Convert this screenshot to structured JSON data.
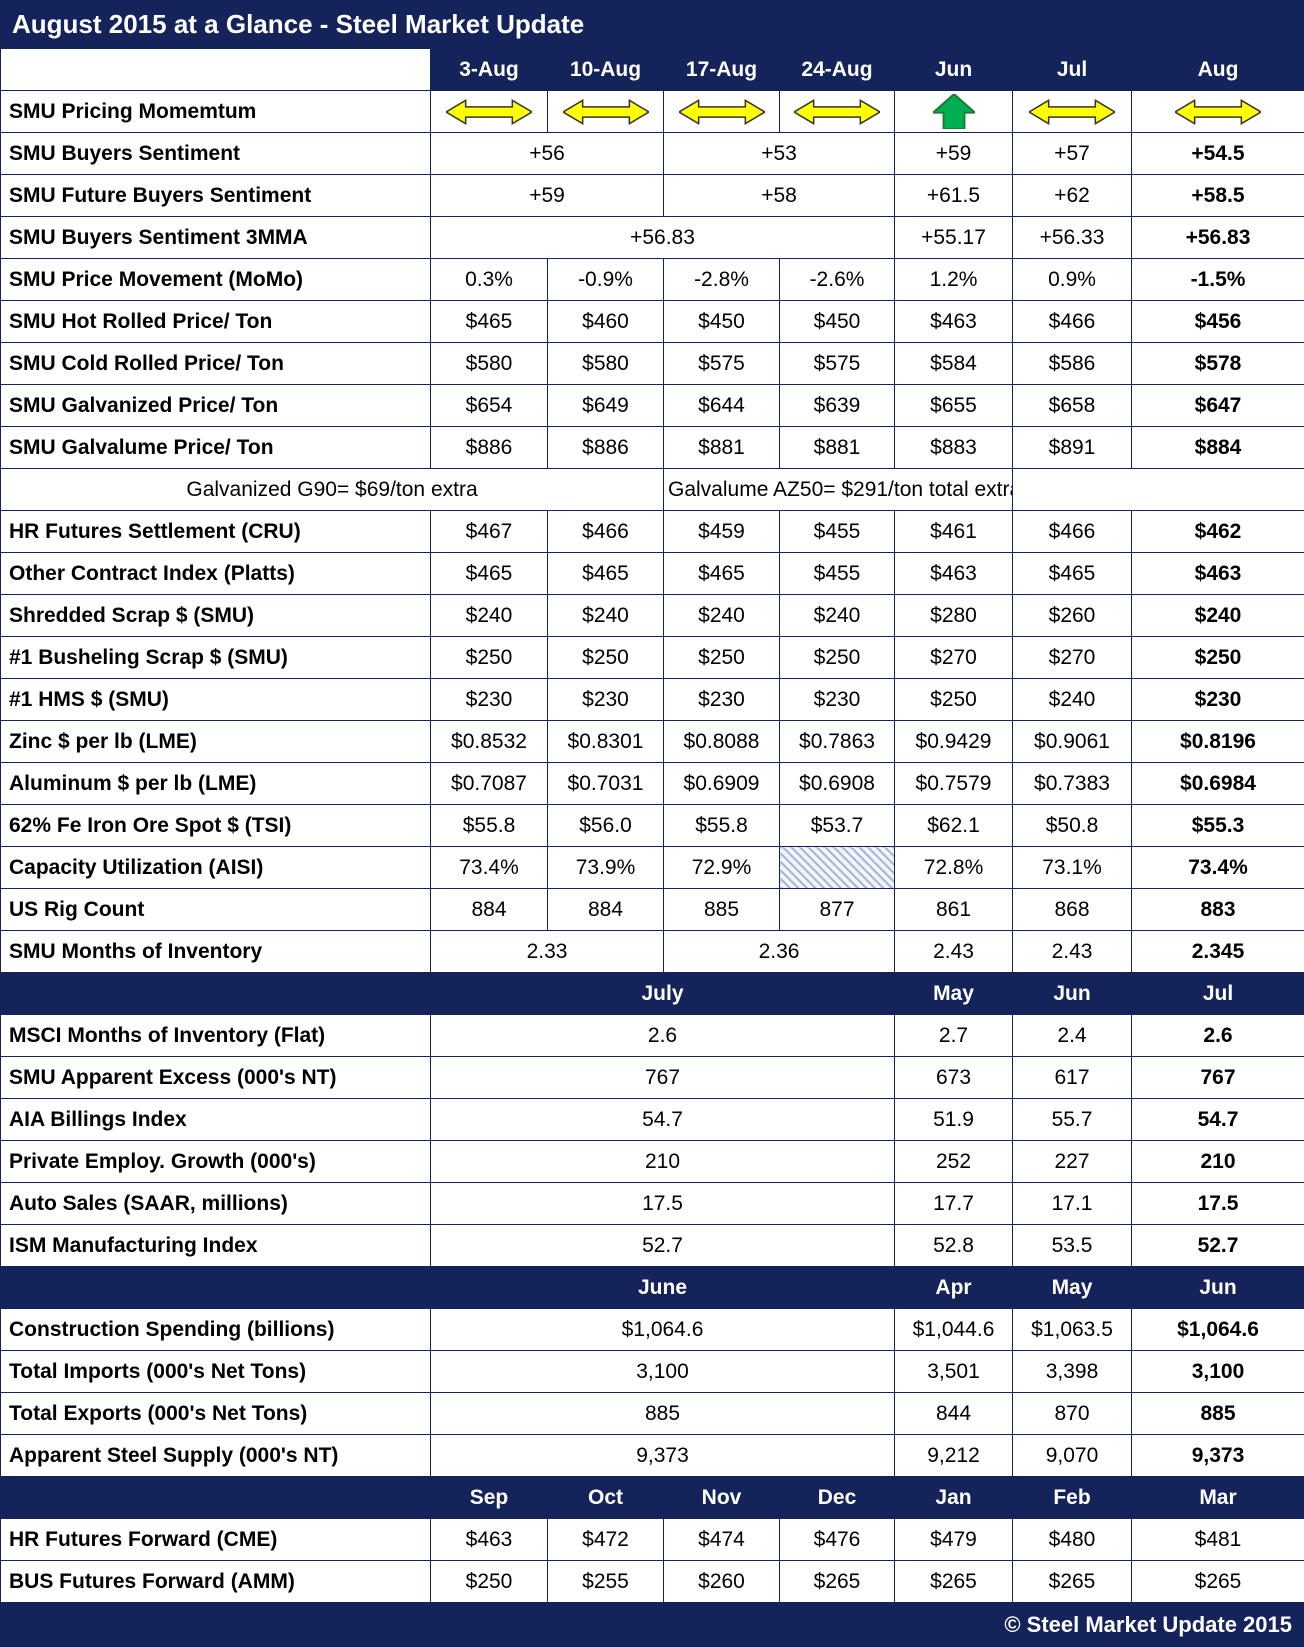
{
  "title": "August 2015 at a Glance - Steel Market Update",
  "footer": "© Steel Market Update 2015",
  "colors": {
    "navy": "#14235a",
    "arrow_yellow": "#ffff00",
    "arrow_green": "#00b050",
    "hatch_blue": "#a9b7d5"
  },
  "icons": {
    "momentum-flat-icon": "⬌ sideways/neutral momentum arrow (yellow)",
    "momentum-up-icon": "⬆ rising momentum arrow (green)"
  },
  "chart_data": {
    "type": "table",
    "title": "August 2015 at a Glance - Steel Market Update",
    "rows": [
      {
        "name": "column-header-row",
        "type": "header",
        "cells": [
          {
            "t": "",
            "blank": true
          },
          {
            "t": "3-Aug"
          },
          {
            "t": "10-Aug"
          },
          {
            "t": "17-Aug"
          },
          {
            "t": "24-Aug"
          },
          {
            "t": "Jun"
          },
          {
            "t": "Jul"
          },
          {
            "t": "Aug"
          }
        ]
      },
      {
        "name": "row-smu-pricing-momentum",
        "type": "data",
        "cells": [
          {
            "t": "SMU Pricing Momemtum",
            "label": true
          },
          {
            "icon": "momentum-flat-icon"
          },
          {
            "icon": "momentum-flat-icon"
          },
          {
            "icon": "momentum-flat-icon"
          },
          {
            "icon": "momentum-flat-icon"
          },
          {
            "icon": "momentum-up-icon"
          },
          {
            "icon": "momentum-flat-icon"
          },
          {
            "icon": "momentum-flat-icon"
          }
        ]
      },
      {
        "name": "row-smu-buyers-sentiment",
        "type": "data",
        "cells": [
          {
            "t": "SMU Buyers Sentiment",
            "label": true
          },
          {
            "t": "+56",
            "s": 2
          },
          {
            "t": "+53",
            "s": 2
          },
          {
            "t": "+59"
          },
          {
            "t": "+57"
          },
          {
            "t": "+54.5",
            "b": true
          }
        ]
      },
      {
        "name": "row-smu-future-buyers-sentiment",
        "type": "data",
        "cells": [
          {
            "t": "SMU Future Buyers Sentiment",
            "label": true
          },
          {
            "t": "+59",
            "s": 2
          },
          {
            "t": "+58",
            "s": 2
          },
          {
            "t": "+61.5"
          },
          {
            "t": "+62"
          },
          {
            "t": "+58.5",
            "b": true
          }
        ]
      },
      {
        "name": "row-smu-buyers-sentiment-3mma",
        "type": "data",
        "cells": [
          {
            "t": "SMU Buyers Sentiment 3MMA",
            "label": true
          },
          {
            "t": "+56.83",
            "s": 4
          },
          {
            "t": "+55.17"
          },
          {
            "t": "+56.33"
          },
          {
            "t": "+56.83",
            "b": true
          }
        ]
      },
      {
        "name": "row-smu-price-movement",
        "type": "data",
        "cells": [
          {
            "t": "SMU Price Movement (MoMo)",
            "label": true
          },
          {
            "t": "0.3%"
          },
          {
            "t": "-0.9%"
          },
          {
            "t": "-2.8%"
          },
          {
            "t": "-2.6%"
          },
          {
            "t": "1.2%"
          },
          {
            "t": "0.9%"
          },
          {
            "t": "-1.5%",
            "b": true
          }
        ]
      },
      {
        "name": "row-smu-hot-rolled-price",
        "type": "data",
        "cells": [
          {
            "t": "SMU Hot Rolled Price/ Ton",
            "label": true
          },
          {
            "t": "$465"
          },
          {
            "t": "$460"
          },
          {
            "t": "$450"
          },
          {
            "t": "$450"
          },
          {
            "t": "$463"
          },
          {
            "t": "$466"
          },
          {
            "t": "$456",
            "b": true
          }
        ]
      },
      {
        "name": "row-smu-cold-rolled-price",
        "type": "data",
        "cells": [
          {
            "t": "SMU Cold Rolled Price/ Ton",
            "label": true
          },
          {
            "t": "$580"
          },
          {
            "t": "$580"
          },
          {
            "t": "$575"
          },
          {
            "t": "$575"
          },
          {
            "t": "$584"
          },
          {
            "t": "$586"
          },
          {
            "t": "$578",
            "b": true
          }
        ]
      },
      {
        "name": "row-smu-galvanized-price",
        "type": "data",
        "cells": [
          {
            "t": "SMU Galvanized Price/ Ton",
            "label": true
          },
          {
            "t": "$654"
          },
          {
            "t": "$649"
          },
          {
            "t": "$644"
          },
          {
            "t": "$639"
          },
          {
            "t": "$655"
          },
          {
            "t": "$658"
          },
          {
            "t": "$647",
            "b": true
          }
        ]
      },
      {
        "name": "row-smu-galvalume-price",
        "type": "data",
        "cells": [
          {
            "t": "SMU Galvalume Price/ Ton",
            "label": true
          },
          {
            "t": "$886"
          },
          {
            "t": "$886"
          },
          {
            "t": "$881"
          },
          {
            "t": "$881"
          },
          {
            "t": "$883"
          },
          {
            "t": "$891"
          },
          {
            "t": "$884",
            "b": true
          }
        ]
      },
      {
        "name": "note-row",
        "type": "note",
        "cells": [
          {
            "t": "Galvanized G90= $69/ton extra",
            "s": 3
          },
          {
            "t": "Galvalume AZ50= $291/ton total extra",
            "s": 3
          },
          {
            "t": "",
            "s": 2
          }
        ]
      },
      {
        "name": "row-hr-futures-settlement",
        "type": "data",
        "cells": [
          {
            "t": "HR Futures Settlement (CRU)",
            "label": true
          },
          {
            "t": "$467"
          },
          {
            "t": "$466"
          },
          {
            "t": "$459"
          },
          {
            "t": "$455"
          },
          {
            "t": "$461"
          },
          {
            "t": "$466"
          },
          {
            "t": "$462",
            "b": true
          }
        ]
      },
      {
        "name": "row-other-contract-index",
        "type": "data",
        "cells": [
          {
            "t": "Other Contract Index (Platts)",
            "label": true
          },
          {
            "t": "$465"
          },
          {
            "t": "$465"
          },
          {
            "t": "$465"
          },
          {
            "t": "$455"
          },
          {
            "t": "$463"
          },
          {
            "t": "$465"
          },
          {
            "t": "$463",
            "b": true
          }
        ]
      },
      {
        "name": "row-shredded-scrap",
        "type": "data",
        "cells": [
          {
            "t": "Shredded Scrap $ (SMU)",
            "label": true
          },
          {
            "t": "$240"
          },
          {
            "t": "$240"
          },
          {
            "t": "$240"
          },
          {
            "t": "$240"
          },
          {
            "t": "$280"
          },
          {
            "t": "$260"
          },
          {
            "t": "$240",
            "b": true
          }
        ]
      },
      {
        "name": "row-busheling-scrap",
        "type": "data",
        "cells": [
          {
            "t": "#1 Busheling Scrap $ (SMU)",
            "label": true
          },
          {
            "t": "$250"
          },
          {
            "t": "$250"
          },
          {
            "t": "$250"
          },
          {
            "t": "$250"
          },
          {
            "t": "$270"
          },
          {
            "t": "$270"
          },
          {
            "t": "$250",
            "b": true
          }
        ]
      },
      {
        "name": "row-hms",
        "type": "data",
        "cells": [
          {
            "t": "#1 HMS $ (SMU)",
            "label": true
          },
          {
            "t": "$230"
          },
          {
            "t": "$230"
          },
          {
            "t": "$230"
          },
          {
            "t": "$230"
          },
          {
            "t": "$250"
          },
          {
            "t": "$240"
          },
          {
            "t": "$230",
            "b": true
          }
        ]
      },
      {
        "name": "row-zinc",
        "type": "data",
        "cells": [
          {
            "t": "Zinc $ per lb (LME)",
            "label": true
          },
          {
            "t": "$0.8532"
          },
          {
            "t": "$0.8301"
          },
          {
            "t": "$0.8088"
          },
          {
            "t": "$0.7863"
          },
          {
            "t": "$0.9429"
          },
          {
            "t": "$0.9061"
          },
          {
            "t": "$0.8196",
            "b": true
          }
        ]
      },
      {
        "name": "row-aluminum",
        "type": "data",
        "cells": [
          {
            "t": "Aluminum $ per lb (LME)",
            "label": true
          },
          {
            "t": "$0.7087"
          },
          {
            "t": "$0.7031"
          },
          {
            "t": "$0.6909"
          },
          {
            "t": "$0.6908"
          },
          {
            "t": "$0.7579"
          },
          {
            "t": "$0.7383"
          },
          {
            "t": "$0.6984",
            "b": true
          }
        ]
      },
      {
        "name": "row-iron-ore",
        "type": "data",
        "cells": [
          {
            "t": "62% Fe Iron Ore Spot $ (TSI)",
            "label": true
          },
          {
            "t": "$55.8"
          },
          {
            "t": "$56.0"
          },
          {
            "t": "$55.8"
          },
          {
            "t": "$53.7"
          },
          {
            "t": "$62.1"
          },
          {
            "t": "$50.8"
          },
          {
            "t": "$55.3",
            "b": true
          }
        ]
      },
      {
        "name": "row-capacity-utilization",
        "type": "data",
        "cells": [
          {
            "t": "Capacity Utilization (AISI)",
            "label": true
          },
          {
            "t": "73.4%"
          },
          {
            "t": "73.9%"
          },
          {
            "t": "72.9%"
          },
          {
            "hatch": true
          },
          {
            "t": "72.8%"
          },
          {
            "t": "73.1%"
          },
          {
            "t": "73.4%",
            "b": true
          }
        ]
      },
      {
        "name": "row-us-rig-count",
        "type": "data",
        "cells": [
          {
            "t": "US Rig Count",
            "label": true
          },
          {
            "t": "884"
          },
          {
            "t": "884"
          },
          {
            "t": "885"
          },
          {
            "t": "877"
          },
          {
            "t": "861"
          },
          {
            "t": "868"
          },
          {
            "t": "883",
            "b": true
          }
        ]
      },
      {
        "name": "row-smu-months-of-inventory",
        "type": "data",
        "cells": [
          {
            "t": "SMU Months of Inventory",
            "label": true
          },
          {
            "t": "2.33",
            "s": 2
          },
          {
            "t": "2.36",
            "s": 2
          },
          {
            "t": "2.43"
          },
          {
            "t": "2.43"
          },
          {
            "t": "2.345",
            "b": true
          }
        ]
      },
      {
        "name": "section-header-row",
        "type": "section",
        "cells": [
          {
            "t": ""
          },
          {
            "t": "July",
            "s": 4
          },
          {
            "t": "May"
          },
          {
            "t": "Jun"
          },
          {
            "t": "Jul"
          }
        ]
      },
      {
        "name": "row-msci-months-of-inventory",
        "type": "data",
        "cells": [
          {
            "t": "MSCI Months of Inventory (Flat)",
            "label": true
          },
          {
            "t": "2.6",
            "s": 4
          },
          {
            "t": "2.7"
          },
          {
            "t": "2.4"
          },
          {
            "t": "2.6",
            "b": true
          }
        ]
      },
      {
        "name": "row-smu-apparent-excess",
        "type": "data",
        "cells": [
          {
            "t": "SMU Apparent Excess (000's NT)",
            "label": true
          },
          {
            "t": "767",
            "s": 4
          },
          {
            "t": "673"
          },
          {
            "t": "617"
          },
          {
            "t": "767",
            "b": true
          }
        ]
      },
      {
        "name": "row-aia-billings-index",
        "type": "data",
        "cells": [
          {
            "t": "AIA Billings Index",
            "label": true
          },
          {
            "t": "54.7",
            "s": 4
          },
          {
            "t": "51.9"
          },
          {
            "t": "55.7"
          },
          {
            "t": "54.7",
            "b": true
          }
        ]
      },
      {
        "name": "row-private-employ-growth",
        "type": "data",
        "cells": [
          {
            "t": "Private Employ. Growth (000's)",
            "label": true
          },
          {
            "t": "210",
            "s": 4
          },
          {
            "t": "252"
          },
          {
            "t": "227"
          },
          {
            "t": "210",
            "b": true
          }
        ]
      },
      {
        "name": "row-auto-sales",
        "type": "data",
        "cells": [
          {
            "t": "Auto Sales (SAAR, millions)",
            "label": true
          },
          {
            "t": "17.5",
            "s": 4
          },
          {
            "t": "17.7"
          },
          {
            "t": "17.1"
          },
          {
            "t": "17.5",
            "b": true
          }
        ]
      },
      {
        "name": "row-ism-manufacturing-index",
        "type": "data",
        "cells": [
          {
            "t": "ISM Manufacturing Index",
            "label": true
          },
          {
            "t": "52.7",
            "s": 4
          },
          {
            "t": "52.8"
          },
          {
            "t": "53.5"
          },
          {
            "t": "52.7",
            "b": true
          }
        ]
      },
      {
        "name": "section-header-row",
        "type": "section",
        "cells": [
          {
            "t": ""
          },
          {
            "t": "June",
            "s": 4
          },
          {
            "t": "Apr"
          },
          {
            "t": "May"
          },
          {
            "t": "Jun"
          }
        ]
      },
      {
        "name": "row-construction-spending",
        "type": "data",
        "cells": [
          {
            "t": "Construction Spending (billions)",
            "label": true
          },
          {
            "t": "$1,064.6",
            "s": 4
          },
          {
            "t": "$1,044.6"
          },
          {
            "t": "$1,063.5"
          },
          {
            "t": "$1,064.6",
            "b": true
          }
        ]
      },
      {
        "name": "row-total-imports",
        "type": "data",
        "cells": [
          {
            "t": "Total Imports (000's Net Tons)",
            "label": true
          },
          {
            "t": "3,100",
            "s": 4
          },
          {
            "t": "3,501"
          },
          {
            "t": "3,398"
          },
          {
            "t": "3,100",
            "b": true
          }
        ]
      },
      {
        "name": "row-total-exports",
        "type": "data",
        "cells": [
          {
            "t": "Total Exports (000's Net Tons)",
            "label": true
          },
          {
            "t": "885",
            "s": 4
          },
          {
            "t": "844"
          },
          {
            "t": "870"
          },
          {
            "t": "885",
            "b": true
          }
        ]
      },
      {
        "name": "row-apparent-steel-supply",
        "type": "data",
        "cells": [
          {
            "t": "Apparent Steel Supply (000's NT)",
            "label": true
          },
          {
            "t": "9,373",
            "s": 4
          },
          {
            "t": "9,212"
          },
          {
            "t": "9,070"
          },
          {
            "t": "9,373",
            "b": true
          }
        ]
      },
      {
        "name": "section-header-row",
        "type": "section",
        "cells": [
          {
            "t": ""
          },
          {
            "t": "Sep"
          },
          {
            "t": "Oct"
          },
          {
            "t": "Nov"
          },
          {
            "t": "Dec"
          },
          {
            "t": "Jan"
          },
          {
            "t": "Feb"
          },
          {
            "t": "Mar"
          }
        ]
      },
      {
        "name": "row-hr-futures-forward",
        "type": "data",
        "cells": [
          {
            "t": "HR Futures Forward (CME)",
            "label": true
          },
          {
            "t": "$463"
          },
          {
            "t": "$472"
          },
          {
            "t": "$474"
          },
          {
            "t": "$476"
          },
          {
            "t": "$479"
          },
          {
            "t": "$480"
          },
          {
            "t": "$481"
          }
        ]
      },
      {
        "name": "row-bus-futures-forward",
        "type": "data",
        "cells": [
          {
            "t": "BUS Futures Forward (AMM)",
            "label": true
          },
          {
            "t": "$250"
          },
          {
            "t": "$255"
          },
          {
            "t": "$260"
          },
          {
            "t": "$265"
          },
          {
            "t": "$265"
          },
          {
            "t": "$265"
          },
          {
            "t": "$265"
          }
        ]
      }
    ]
  }
}
